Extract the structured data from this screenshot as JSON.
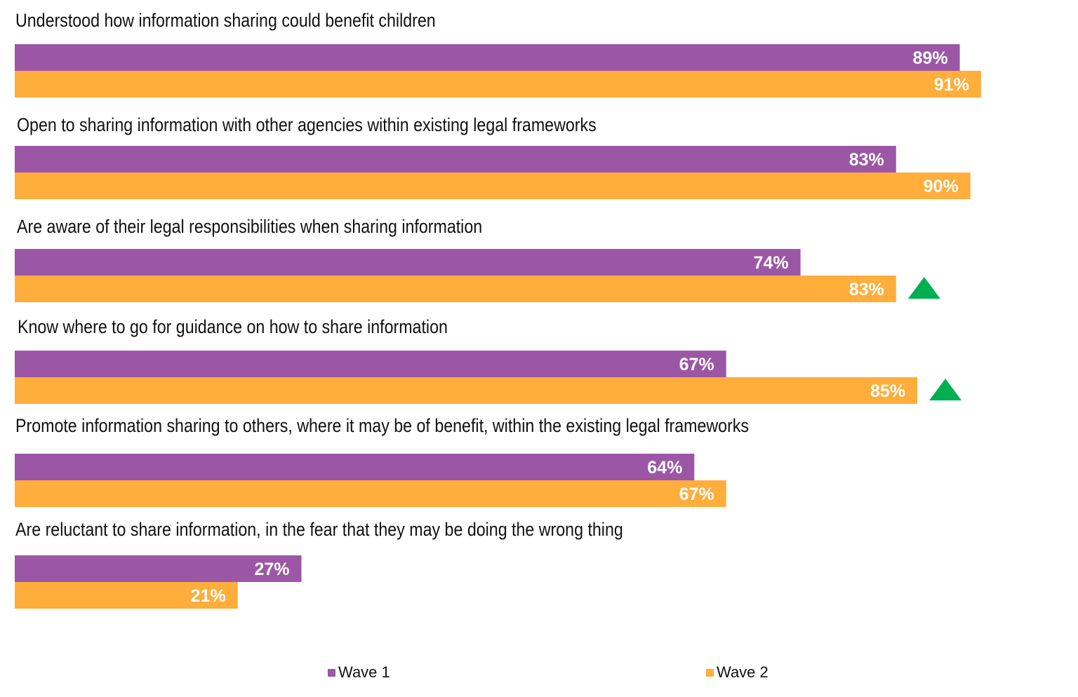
{
  "chart_data": {
    "type": "bar",
    "orientation": "horizontal",
    "categories": [
      "Understood how information sharing could benefit children",
      "Open to sharing information with other agencies within existing legal frameworks",
      "Are aware of their legal responsibilities  when sharing information",
      "Know where to go for guidance on how to share information",
      "Promote information sharing to others, where it may be of benefit, within the existing legal frameworks",
      "Are reluctant to share information, in the fear that they may be doing the wrong thing"
    ],
    "series": [
      {
        "name": "Wave 1",
        "color": "#9B57A6",
        "values": [
          89,
          83,
          74,
          67,
          64,
          27
        ],
        "labels": [
          "89%",
          "83%",
          "74%",
          "67%",
          "64%",
          "27%"
        ]
      },
      {
        "name": "Wave 2",
        "color": "#FFAD3B",
        "values": [
          91,
          90,
          83,
          85,
          67,
          21
        ],
        "labels": [
          "91%",
          "90%",
          "83%",
          "85%",
          "67%",
          "21%"
        ]
      }
    ],
    "significant_increase": [
      false,
      false,
      true,
      true,
      false,
      false
    ],
    "significance_icon": "up-triangle-icon",
    "significance_color": "#00B050",
    "xlim": [
      0,
      100
    ],
    "unit": "%",
    "grid": false,
    "legend_position": "bottom"
  }
}
